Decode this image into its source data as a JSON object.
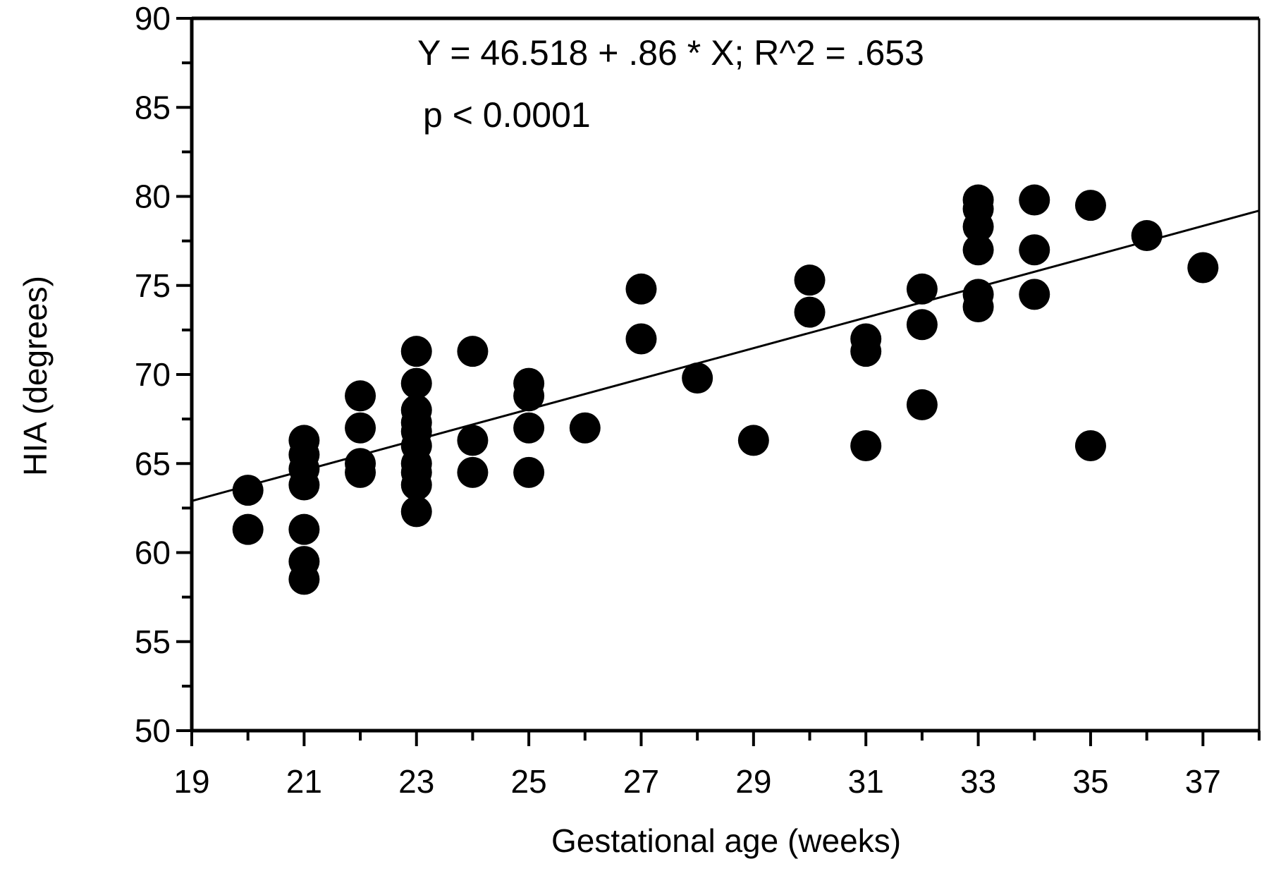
{
  "chart_data": {
    "type": "scatter",
    "title": "",
    "xlabel": "Gestational age (weeks)",
    "ylabel": "HIA (degrees)",
    "xlim": [
      19,
      38
    ],
    "ylim": [
      50,
      90
    ],
    "xticks": [
      19,
      21,
      23,
      25,
      27,
      29,
      31,
      33,
      35,
      37
    ],
    "yticks": [
      50,
      55,
      60,
      65,
      70,
      75,
      80,
      85,
      90
    ],
    "grid": false,
    "legend": "none",
    "annotations": [
      "Y = 46.518 + .86 * X; R^2 = .653",
      "p < 0.0001"
    ],
    "marker_color": "#000000",
    "fit_line": {
      "from": [
        19,
        62.9
      ],
      "to": [
        38,
        79.2
      ]
    },
    "points": [
      {
        "x": 20,
        "y": 63.5
      },
      {
        "x": 20,
        "y": 61.3
      },
      {
        "x": 21,
        "y": 66.3
      },
      {
        "x": 21,
        "y": 65.5
      },
      {
        "x": 21,
        "y": 64.7
      },
      {
        "x": 21,
        "y": 63.8
      },
      {
        "x": 21,
        "y": 61.3
      },
      {
        "x": 21,
        "y": 59.5
      },
      {
        "x": 21,
        "y": 58.5
      },
      {
        "x": 22,
        "y": 68.8
      },
      {
        "x": 22,
        "y": 67.0
      },
      {
        "x": 22,
        "y": 65.0
      },
      {
        "x": 22,
        "y": 64.5
      },
      {
        "x": 23,
        "y": 71.3
      },
      {
        "x": 23,
        "y": 69.5
      },
      {
        "x": 23,
        "y": 68.0
      },
      {
        "x": 23,
        "y": 67.3
      },
      {
        "x": 23,
        "y": 66.8
      },
      {
        "x": 23,
        "y": 66.0
      },
      {
        "x": 23,
        "y": 65.0
      },
      {
        "x": 23,
        "y": 64.5
      },
      {
        "x": 23,
        "y": 63.8
      },
      {
        "x": 23,
        "y": 62.3
      },
      {
        "x": 24,
        "y": 71.3
      },
      {
        "x": 24,
        "y": 66.3
      },
      {
        "x": 24,
        "y": 64.5
      },
      {
        "x": 25,
        "y": 69.5
      },
      {
        "x": 25,
        "y": 68.8
      },
      {
        "x": 25,
        "y": 67.0
      },
      {
        "x": 25,
        "y": 64.5
      },
      {
        "x": 26,
        "y": 67.0
      },
      {
        "x": 27,
        "y": 74.8
      },
      {
        "x": 27,
        "y": 72.0
      },
      {
        "x": 28,
        "y": 69.8
      },
      {
        "x": 29,
        "y": 66.3
      },
      {
        "x": 30,
        "y": 75.3
      },
      {
        "x": 30,
        "y": 73.5
      },
      {
        "x": 31,
        "y": 72.0
      },
      {
        "x": 31,
        "y": 71.3
      },
      {
        "x": 31,
        "y": 66.0
      },
      {
        "x": 32,
        "y": 74.8
      },
      {
        "x": 32,
        "y": 72.8
      },
      {
        "x": 32,
        "y": 68.3
      },
      {
        "x": 33,
        "y": 79.8
      },
      {
        "x": 33,
        "y": 79.3
      },
      {
        "x": 33,
        "y": 78.3
      },
      {
        "x": 33,
        "y": 77.0
      },
      {
        "x": 33,
        "y": 74.5
      },
      {
        "x": 33,
        "y": 73.8
      },
      {
        "x": 34,
        "y": 79.8
      },
      {
        "x": 34,
        "y": 77.0
      },
      {
        "x": 34,
        "y": 74.5
      },
      {
        "x": 35,
        "y": 79.5
      },
      {
        "x": 35,
        "y": 66.0
      },
      {
        "x": 36,
        "y": 77.8
      },
      {
        "x": 37,
        "y": 76.0
      }
    ]
  }
}
